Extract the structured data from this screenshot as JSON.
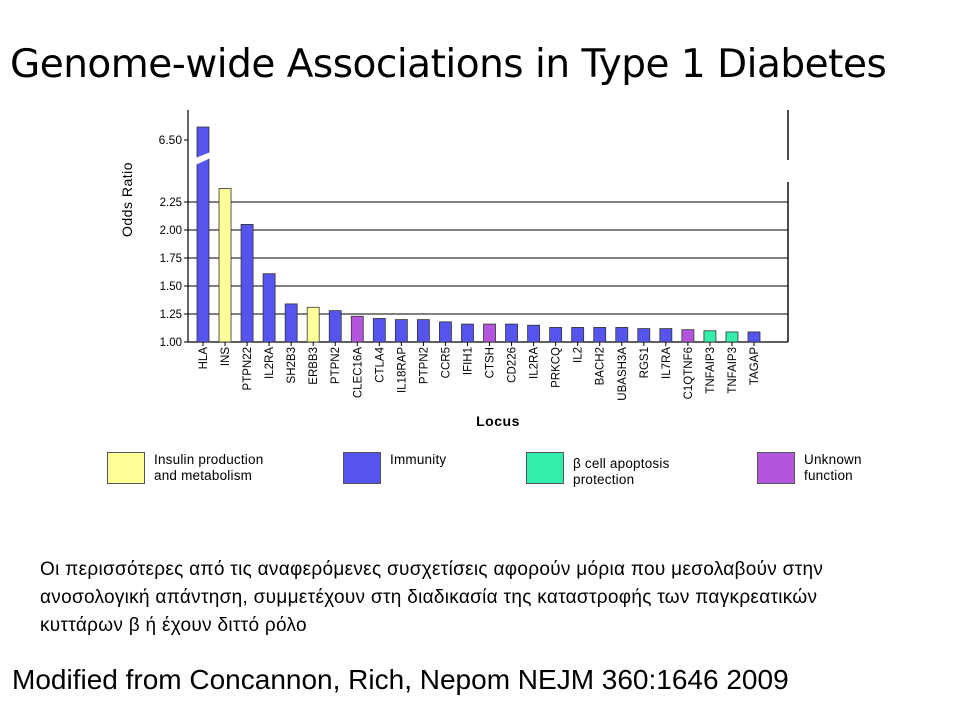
{
  "slide": {
    "title": "Genome-wide Associations in Type 1 Diabetes",
    "summary": "Οι περισσότερες από τις αναφερόμενες συσχετίσεις αφορούν μόρια που μεσολαβούν στην ανοσολογική απάντηση, συμμετέχουν στη διαδικασία της καταστροφής των παγκρεατικών κυττάρων β ή έχουν διττό ρόλο",
    "citation": "Modified from Concannon, Rich, Nepom NEJM 360:1646 2009"
  },
  "legend": [
    {
      "key": "insulin",
      "label": "Insulin production\nand metabolism",
      "color": "#ffff99"
    },
    {
      "key": "immunity",
      "label": "Immunity",
      "color": "#5555ee"
    },
    {
      "key": "apoptosis",
      "label": "β cell apoptosis\nprotection",
      "color": "#33eeaa"
    },
    {
      "key": "unknown",
      "label": "Unknown\nfunction",
      "color": "#b455dd"
    }
  ],
  "chart_data": {
    "type": "bar",
    "xlabel": "Locus",
    "ylabel": "Odds Ratio",
    "axis_break": true,
    "ylim": [
      1.0,
      2.5
    ],
    "yticks": [
      "1.00",
      "1.25",
      "1.50",
      "1.75",
      "2.00",
      "2.25"
    ],
    "ytick_values": [
      1.0,
      1.25,
      1.5,
      1.75,
      2.0,
      2.25
    ],
    "break_tick": {
      "label": "6.50",
      "value": 6.5
    },
    "grid": true,
    "categories": [
      "HLA",
      "INS",
      "PTPN22",
      "IL2RA",
      "SH2B3",
      "ERBB3",
      "PTPN2",
      "CLEC16A",
      "CTLA4",
      "IL18RAP",
      "PTPN2",
      "CCR5",
      "IFIH1",
      "CTSH",
      "CD226",
      "IL2RA",
      "PRKCQ",
      "IL2",
      "BACH2",
      "UBASH3A",
      "RGS1",
      "IL7RA",
      "C1QTNF6",
      "TNFAIP3",
      "TNFAIP3",
      "TAGAP"
    ],
    "values": [
      6.5,
      2.37,
      2.05,
      1.61,
      1.34,
      1.31,
      1.28,
      1.23,
      1.21,
      1.2,
      1.2,
      1.18,
      1.16,
      1.16,
      1.16,
      1.15,
      1.13,
      1.13,
      1.13,
      1.13,
      1.12,
      1.12,
      1.11,
      1.1,
      1.09,
      1.09
    ],
    "function_groups": [
      "immunity",
      "insulin",
      "immunity",
      "immunity",
      "immunity",
      "insulin",
      "immunity",
      "unknown",
      "immunity",
      "immunity",
      "immunity",
      "immunity",
      "immunity",
      "unknown",
      "immunity",
      "immunity",
      "immunity",
      "immunity",
      "immunity",
      "immunity",
      "immunity",
      "immunity",
      "unknown",
      "apoptosis",
      "apoptosis",
      "immunity"
    ]
  }
}
